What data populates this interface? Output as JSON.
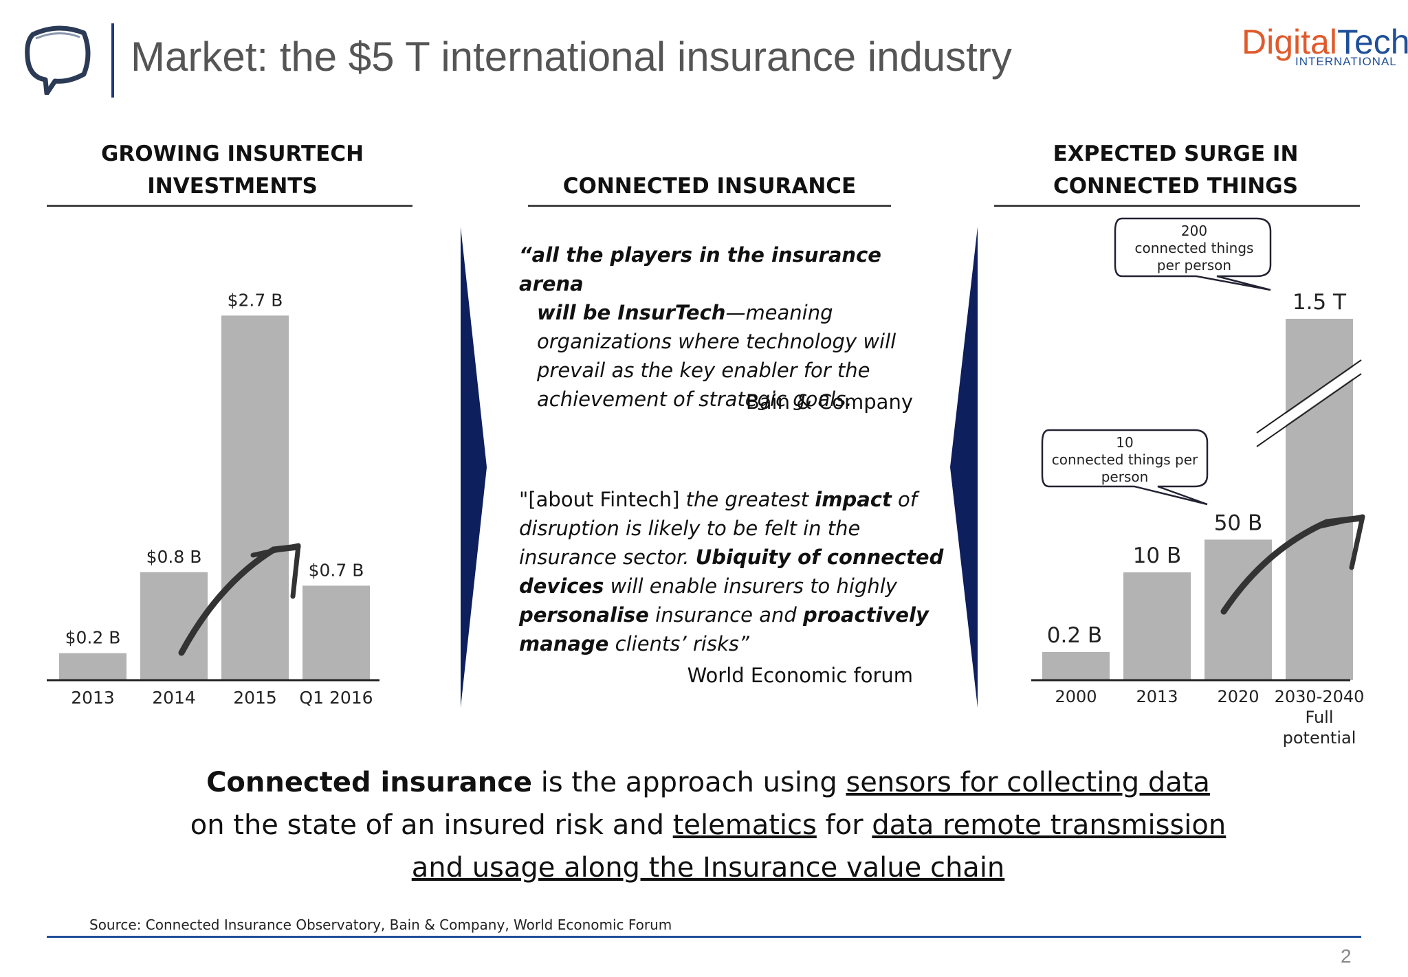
{
  "header": {
    "title": "Market: the $5 T international insurance industry",
    "brand_part1": "Digital",
    "brand_part2": "Tech",
    "brand_sub": "INTERNATIONAL"
  },
  "left_panel": {
    "heading_line1": "GROWING INSURTECH",
    "heading_line2": "INVESTMENTS"
  },
  "middle_panel": {
    "heading": "CONNECTED INSURANCE",
    "quote1_bold": "“all the players in the insurance arena",
    "quote1_bold2": "will be InsurTech",
    "quote1_rest_line2": "—meaning",
    "quote1_line3": "organizations where technology will",
    "quote1_line4": "prevail as the key enabler for the",
    "quote1_line5": "achievement of strategic goals.",
    "quote1_attr": "Bain & Company",
    "q2_l1_a": "\"[about Fintech] ",
    "q2_l1_b": "the greatest ",
    "q2_l1_c": "impact",
    "q2_l1_d": " of",
    "q2_l2": "disruption is likely to be felt in the",
    "q2_l3_a": "insurance sector. ",
    "q2_l3_b": "Ubiquity of connected",
    "q2_l4_a": "devices",
    "q2_l4_b": " will enable insurers to highly",
    "q2_l5_a": "personalise",
    "q2_l5_b": " insurance and ",
    "q2_l5_c": "proactively",
    "q2_l6_a": "manage",
    "q2_l6_b": " clients’ risks”",
    "quote2_attr": "World Economic forum"
  },
  "right_panel": {
    "heading_line1": "EXPECTED SURGE IN",
    "heading_line2": "CONNECTED THINGS",
    "callout_top_l1": "200",
    "callout_top_l2": "connected things",
    "callout_top_l3": "per person",
    "callout_mid_l1": "10",
    "callout_mid_l2": "connected things per",
    "callout_mid_l3": "person"
  },
  "bottom": {
    "b1": "Connected insurance",
    "b2": " is the approach using ",
    "b3": "sensors for collecting data",
    "b4": "on the state of an insured risk and ",
    "b5": "telematics",
    "b6": " for ",
    "b7": "data remote transmission",
    "b8": "and usage along the Insurance value chain",
    "source": "Source: Connected Insurance Observatory, Bain & Company, World Economic Forum",
    "page_number": "2"
  },
  "colors": {
    "bar": "#b3b3b3",
    "arrow_panel": "#0d1f5c",
    "accent_orange": "#e05a2b",
    "accent_blue": "#1f4f99"
  },
  "chart_data": [
    {
      "type": "bar",
      "title": "GROWING INSURTECH INVESTMENTS",
      "categories": [
        "2013",
        "2014",
        "2015",
        "Q1 2016"
      ],
      "values": [
        0.2,
        0.8,
        2.7,
        0.7
      ],
      "data_labels": [
        "$0.2 B",
        "$0.8 B",
        "$2.7 B",
        "$0.7 B"
      ],
      "unit": "$ B",
      "ylim": [
        0,
        2.9
      ]
    },
    {
      "type": "bar",
      "title": "EXPECTED SURGE IN CONNECTED THINGS",
      "categories": [
        "2000",
        "2013",
        "2020",
        "2030-2040 Full potential"
      ],
      "category_lines": [
        [
          "2000"
        ],
        [
          "2013"
        ],
        [
          "2020"
        ],
        [
          "2030-2040",
          "Full",
          "potential"
        ]
      ],
      "values": [
        0.2,
        10,
        50,
        1500
      ],
      "data_labels": [
        "0.2 B",
        "10 B",
        "50 B",
        "1.5 T"
      ],
      "unit": "connected things",
      "axis_break": true
    }
  ]
}
